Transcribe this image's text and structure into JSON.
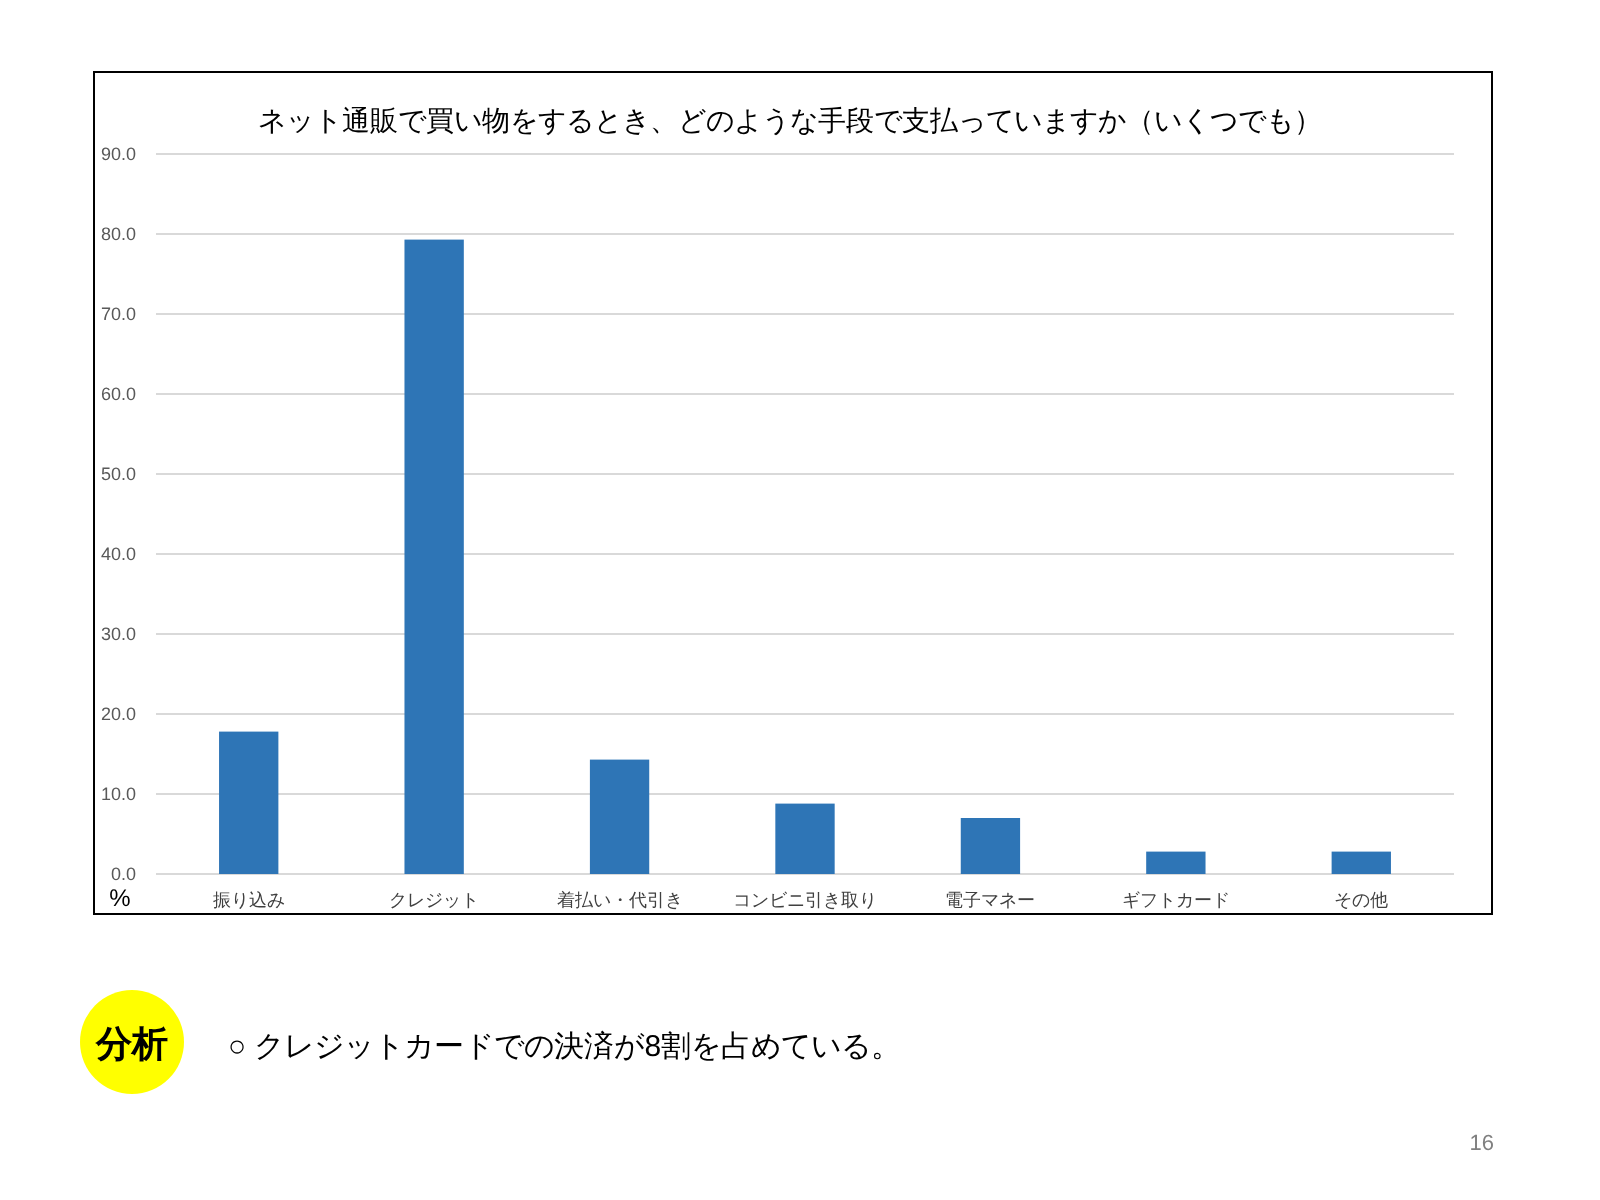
{
  "chart_data": {
    "type": "bar",
    "title": "ネット通販で買い物をするとき、どのような手段で支払っていますか（いくつでも）",
    "ylabel": "%",
    "categories": [
      "振り込み",
      "クレジット",
      "着払い・代引き",
      "コンビニ引き取り",
      "電子マネー",
      "ギフトカード",
      "その他"
    ],
    "values": [
      17.8,
      79.3,
      14.3,
      8.8,
      7.0,
      2.8,
      2.8
    ],
    "color": "#2e75b6",
    "ylim": [
      0,
      90
    ],
    "yticks": [
      {
        "value": 0,
        "label": "0.0"
      },
      {
        "value": 10,
        "label": "10.0"
      },
      {
        "value": 20,
        "label": "20.0"
      },
      {
        "value": 30,
        "label": "30.0"
      },
      {
        "value": 40,
        "label": "40.0"
      },
      {
        "value": 50,
        "label": "50.0"
      },
      {
        "value": 60,
        "label": "60.0"
      },
      {
        "value": 70,
        "label": "70.0"
      },
      {
        "value": 80,
        "label": "80.0"
      },
      {
        "value": 90,
        "label": "90.0"
      }
    ],
    "grid": "y",
    "annotations": [
      "分析",
      "○ クレジットカードでの決済が8割を占めている。",
      "16"
    ]
  }
}
